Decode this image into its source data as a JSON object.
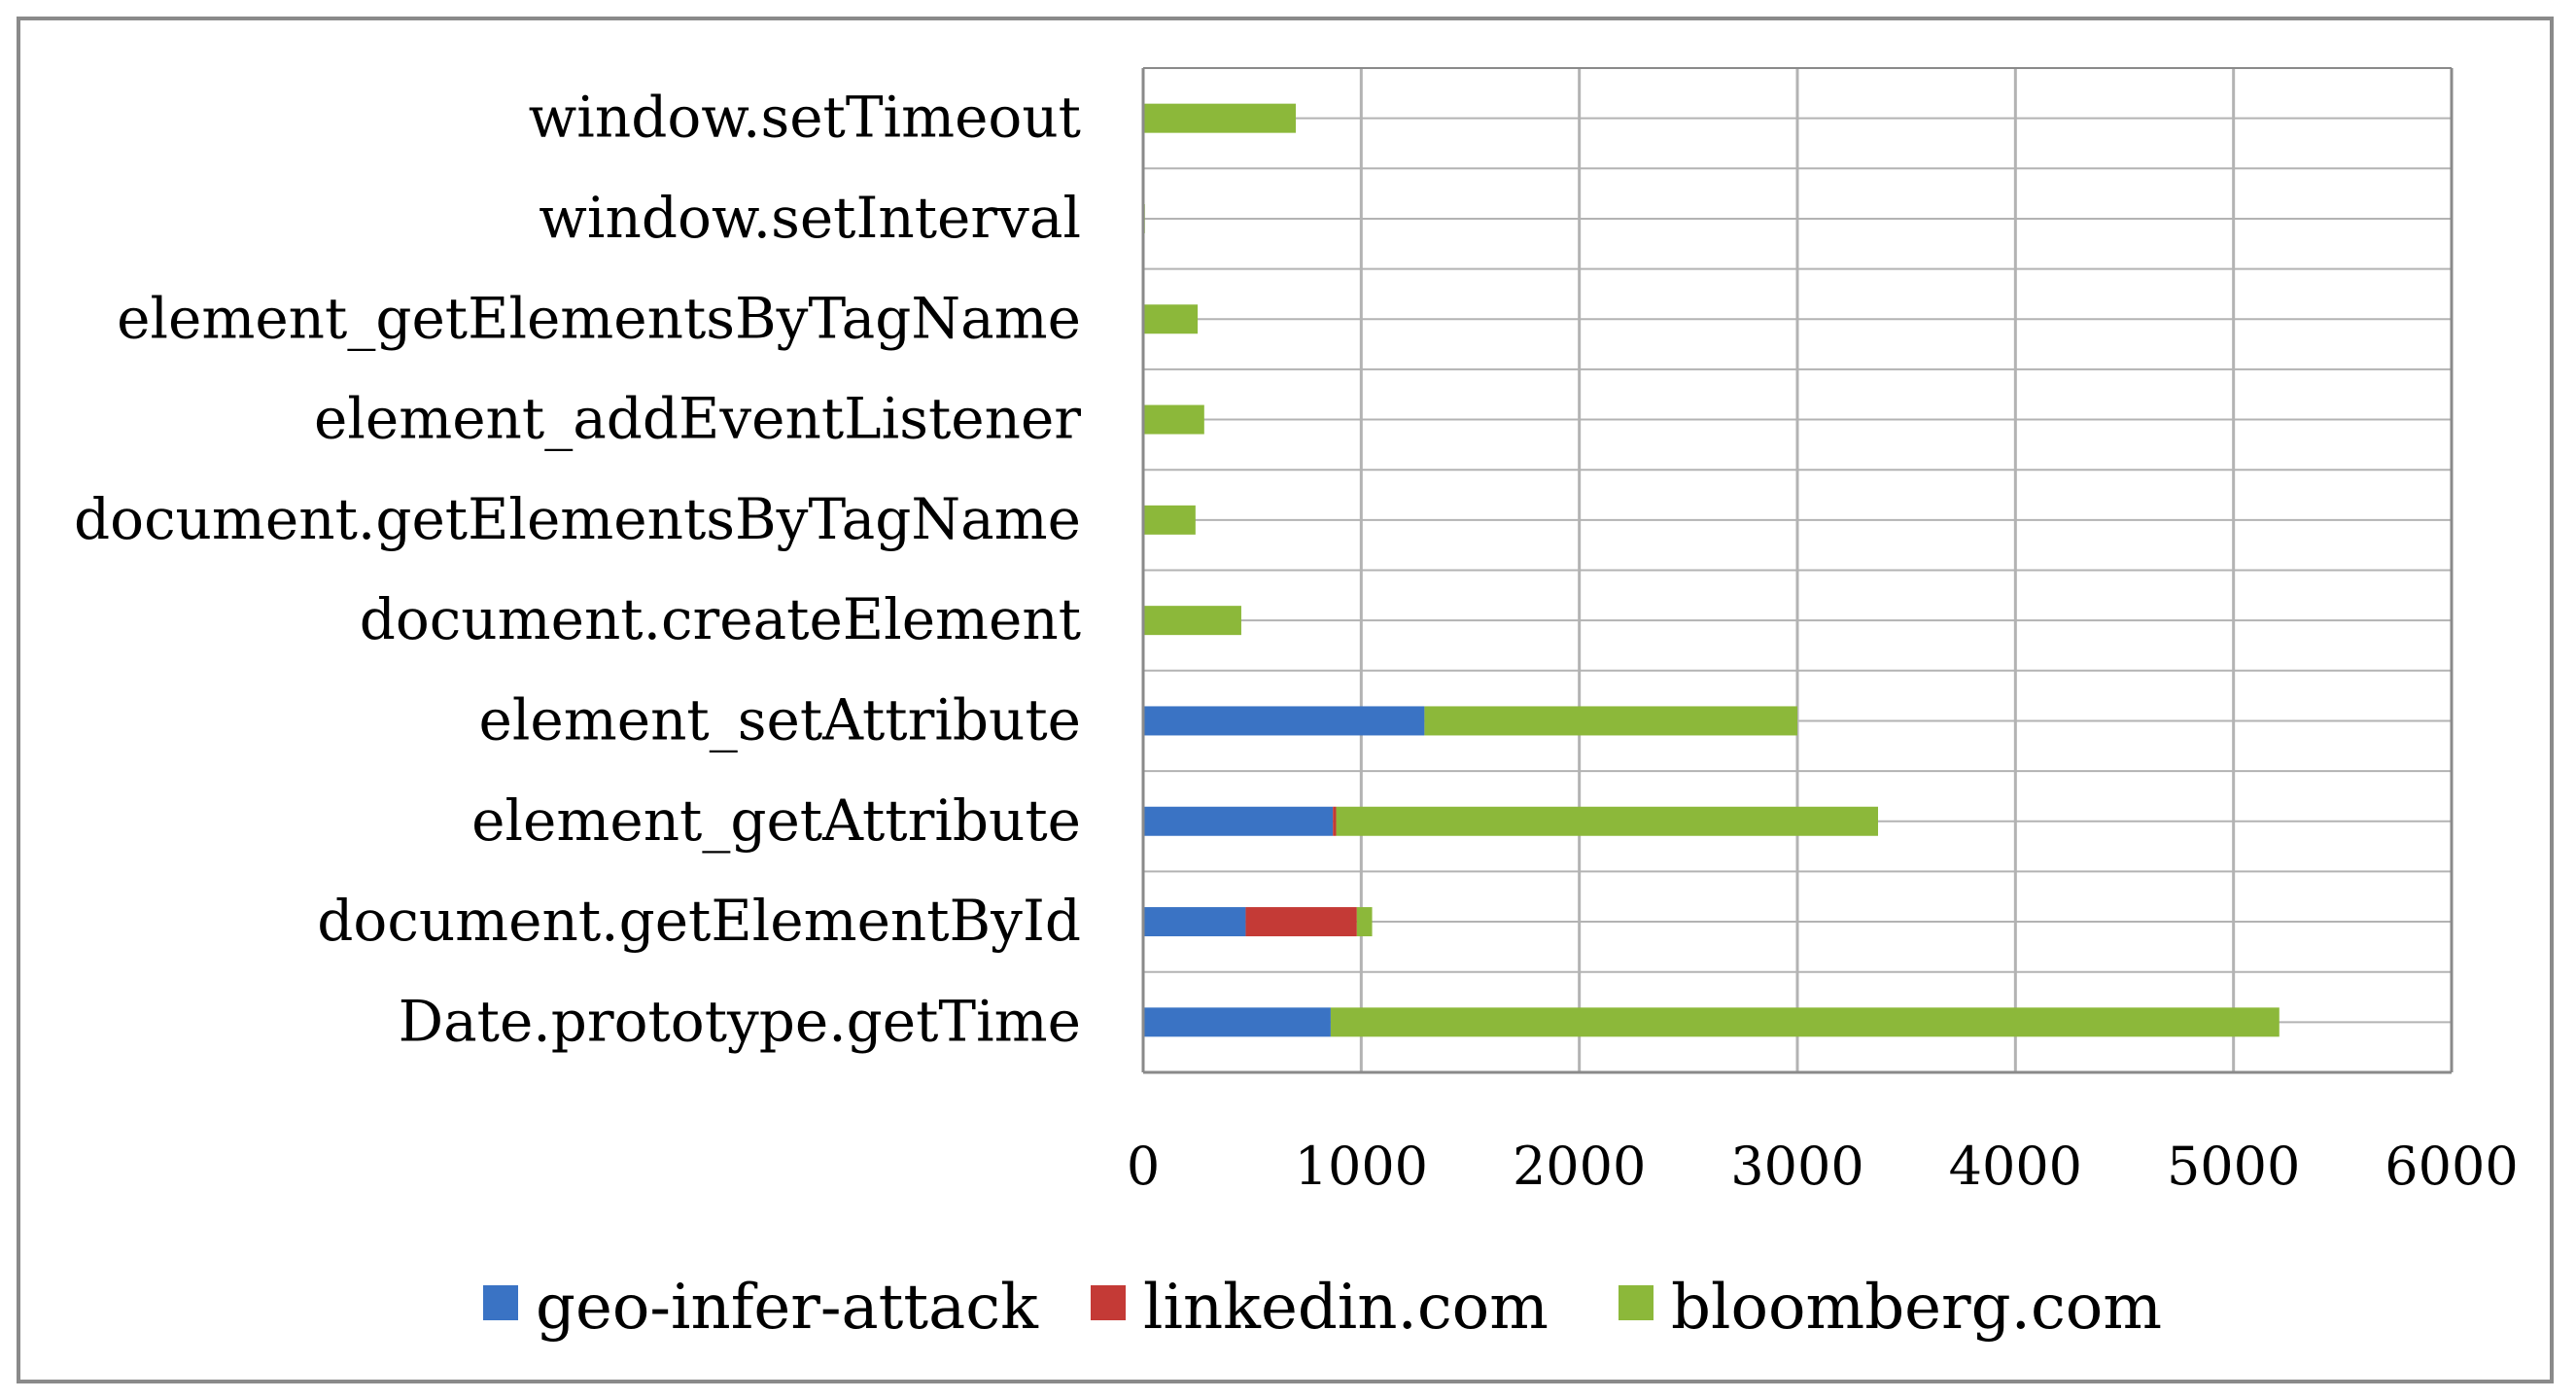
{
  "chart_data": {
    "type": "bar",
    "orientation": "horizontal",
    "stacked": true,
    "title": "",
    "xlabel": "",
    "ylabel": "",
    "categories": [
      "window.setTimeout",
      "window.setInterval",
      "element_getElementsByTagName",
      "element_addEventListener",
      "document.getElementsByTagName",
      "document.createElement",
      "element_setAttribute",
      "element_getAttribute",
      "document.getElementById",
      "Date.prototype.getTime"
    ],
    "series": [
      {
        "name": "geo-infer-attack",
        "color": "#3a73c4",
        "values": [
          0,
          0,
          0,
          0,
          0,
          0,
          1290,
          870,
          470,
          860
        ]
      },
      {
        "name": "linkedin.com",
        "color": "#c43a36",
        "values": [
          0,
          0,
          0,
          0,
          0,
          0,
          0,
          15,
          510,
          0
        ]
      },
      {
        "name": "bloomberg.com",
        "color": "#8cb83a",
        "values": [
          700,
          8,
          250,
          280,
          240,
          450,
          1710,
          2485,
          70,
          4350
        ]
      }
    ],
    "xlim": [
      0,
      6000
    ],
    "xticks": [
      0,
      1000,
      2000,
      3000,
      4000,
      5000,
      6000
    ],
    "xtick_labels": [
      "0",
      "1000",
      "2000",
      "3000",
      "4000",
      "5000",
      "6000"
    ],
    "grid": true,
    "legend_position": "bottom"
  }
}
